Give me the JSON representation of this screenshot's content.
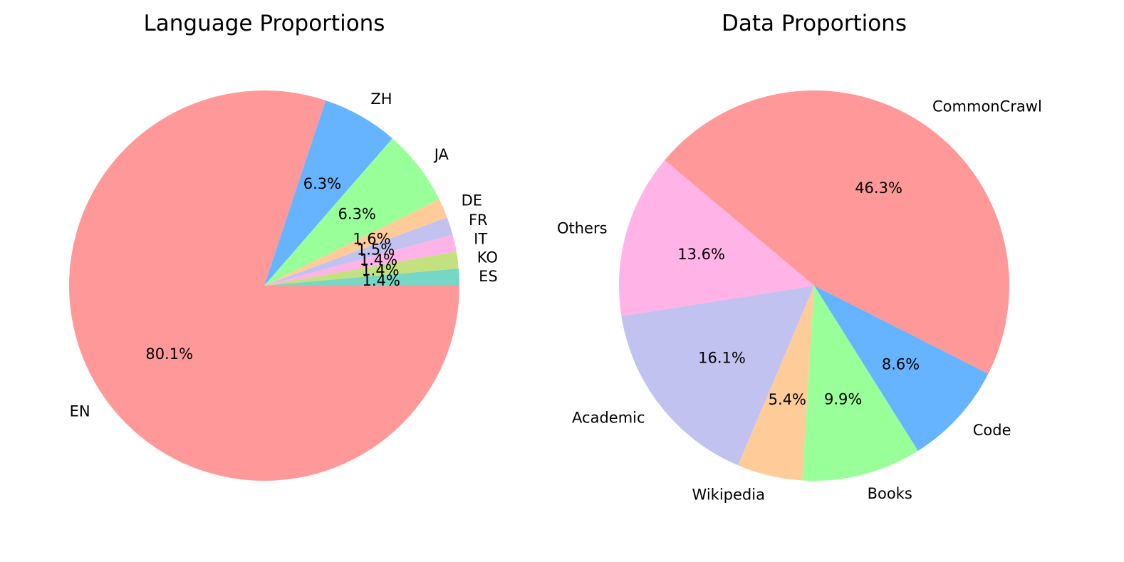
{
  "chart_data": [
    {
      "type": "pie",
      "title": "Language Proportions",
      "slices": [
        {
          "label": "EN",
          "value": 80.1,
          "display": "80.1%",
          "color": "#ff9999"
        },
        {
          "label": "ZH",
          "value": 6.3,
          "display": "6.3%",
          "color": "#66b3ff"
        },
        {
          "label": "JA",
          "value": 6.3,
          "display": "6.3%",
          "color": "#99ff99"
        },
        {
          "label": "DE",
          "value": 1.6,
          "display": "1.6%",
          "color": "#ffcc99"
        },
        {
          "label": "FR",
          "value": 1.5,
          "display": "1.5%",
          "color": "#c2c2f0"
        },
        {
          "label": "IT",
          "value": 1.4,
          "display": "1.4%",
          "color": "#ffb3e6"
        },
        {
          "label": "KO",
          "value": 1.4,
          "display": "1.4%",
          "color": "#c4e17f"
        },
        {
          "label": "ES",
          "value": 1.4,
          "display": "1.4%",
          "color": "#76d7c4"
        }
      ],
      "start_angle_deg": 0,
      "direction": "clockwise"
    },
    {
      "type": "pie",
      "title": "Data Proportions",
      "slices": [
        {
          "label": "CommonCrawl",
          "value": 46.3,
          "display": "46.3%",
          "color": "#ff9999"
        },
        {
          "label": "Code",
          "value": 8.6,
          "display": "8.6%",
          "color": "#66b3ff"
        },
        {
          "label": "Books",
          "value": 9.9,
          "display": "9.9%",
          "color": "#99ff99"
        },
        {
          "label": "Wikipedia",
          "value": 5.4,
          "display": "5.4%",
          "color": "#ffcc99"
        },
        {
          "label": "Academic",
          "value": 16.1,
          "display": "16.1%",
          "color": "#c2c2f0"
        },
        {
          "label": "Others",
          "value": 13.6,
          "display": "13.6%",
          "color": "#ffb3e6"
        }
      ],
      "start_angle_deg": 140,
      "direction": "clockwise"
    }
  ]
}
